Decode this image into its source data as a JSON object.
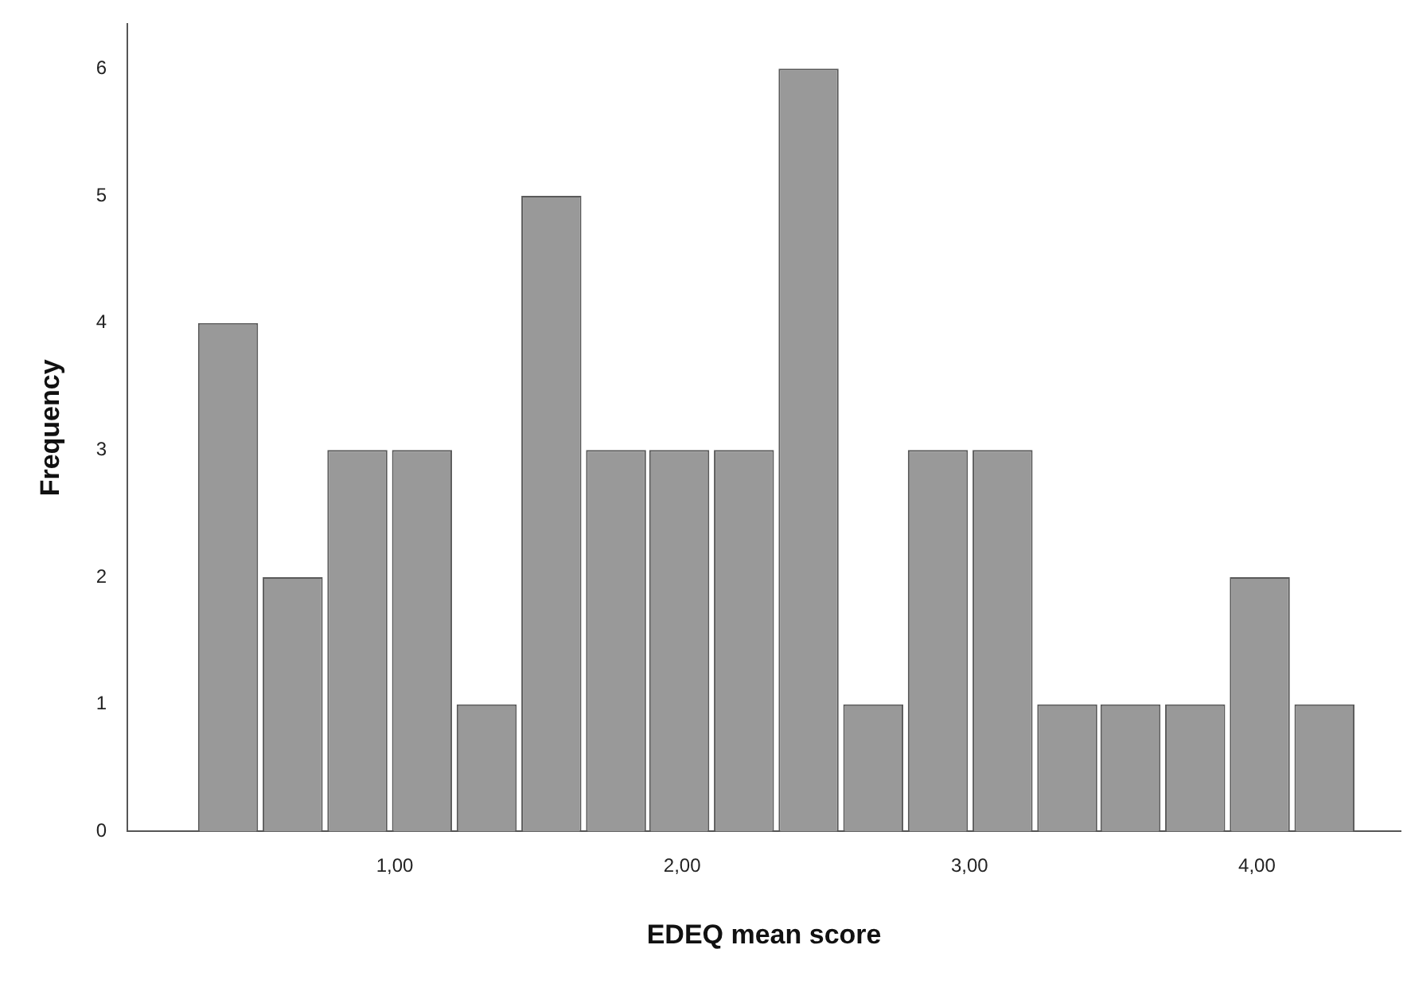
{
  "chart_data": {
    "type": "histogram",
    "xlabel": "EDEQ mean score",
    "ylabel": "Frequency",
    "bins": [
      0.31,
      0.53,
      0.76,
      0.98,
      1.21,
      1.43,
      1.66,
      1.88,
      2.1,
      2.33,
      2.55,
      2.78,
      3.0,
      3.23,
      3.45,
      3.67,
      3.9,
      4.12,
      4.35
    ],
    "values": [
      4,
      2,
      3,
      3,
      1,
      5,
      3,
      3,
      3,
      6,
      1,
      3,
      3,
      1,
      1,
      1,
      2,
      1
    ],
    "color": "#999999",
    "xlim": [
      0.07,
      4.5
    ],
    "xticks": [
      {
        "value": 1,
        "label": "1,00"
      },
      {
        "value": 2,
        "label": "2,00"
      },
      {
        "value": 3,
        "label": "3,00"
      },
      {
        "value": 4,
        "label": "4,00"
      }
    ],
    "ylim": [
      0,
      6.35
    ],
    "yticks": [
      0,
      1,
      2,
      3,
      4,
      5,
      6
    ],
    "grid": false,
    "legend": false
  }
}
